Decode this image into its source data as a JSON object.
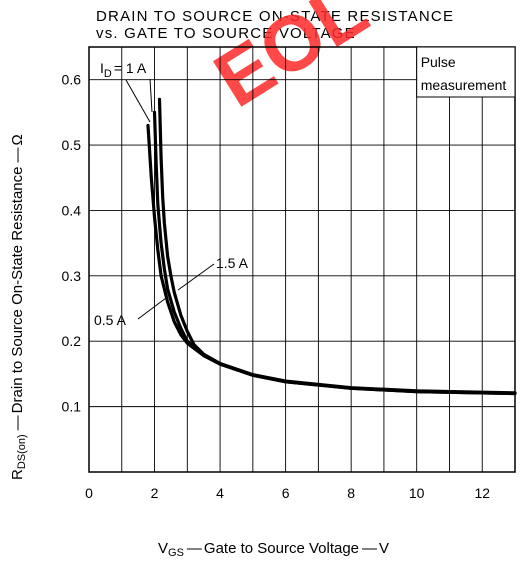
{
  "chart_data": {
    "type": "line",
    "title_line1": "DRAIN TO SOURCE ON-STATE RESISTANCE",
    "title_line2": "vs. GATE TO SOURCE VOLTAGE",
    "xlabel": "Gate to Source Voltage",
    "xlabel_symbol": "V",
    "xlabel_sub": "GS",
    "xlabel_unit": "V",
    "ylabel": "Drain to Source On-State Resistance",
    "ylabel_symbol": "R",
    "ylabel_sub": "DS(on)",
    "ylabel_unit": "Ω",
    "xlim": [
      0,
      13
    ],
    "ylim": [
      0,
      0.65
    ],
    "x_ticks": [
      0,
      2,
      4,
      6,
      8,
      10,
      12
    ],
    "y_ticks": [
      0.1,
      0.2,
      0.3,
      0.4,
      0.5,
      0.6
    ],
    "grid": true,
    "note_line1": "Pulse",
    "note_line2": "measurement",
    "series": [
      {
        "name": "0.5 A",
        "x": [
          1.8,
          1.9,
          2.0,
          2.1,
          2.2,
          2.4,
          2.6,
          2.8,
          3.0,
          3.5,
          4.0,
          5.0,
          6.0,
          8.0,
          10.0,
          12.0,
          13.0
        ],
        "y": [
          0.53,
          0.45,
          0.39,
          0.34,
          0.3,
          0.26,
          0.23,
          0.21,
          0.197,
          0.178,
          0.165,
          0.148,
          0.138,
          0.128,
          0.123,
          0.121,
          0.12
        ]
      },
      {
        "name": "1 A",
        "x": [
          2.0,
          2.05,
          2.1,
          2.2,
          2.3,
          2.4,
          2.6,
          2.8,
          3.0,
          3.5,
          4.0,
          5.0,
          6.0,
          8.0,
          10.0,
          12.0,
          13.0
        ],
        "y": [
          0.55,
          0.47,
          0.41,
          0.35,
          0.31,
          0.28,
          0.245,
          0.22,
          0.2,
          0.178,
          0.165,
          0.148,
          0.138,
          0.128,
          0.123,
          0.121,
          0.12
        ]
      },
      {
        "name": "1.5 A",
        "x": [
          2.15,
          2.2,
          2.25,
          2.3,
          2.4,
          2.5,
          2.6,
          2.8,
          3.0,
          3.2,
          3.5,
          4.0,
          5.0,
          6.0,
          8.0,
          10.0,
          12.0,
          13.0
        ],
        "y": [
          0.57,
          0.48,
          0.42,
          0.38,
          0.33,
          0.3,
          0.275,
          0.24,
          0.215,
          0.195,
          0.18,
          0.166,
          0.149,
          0.139,
          0.129,
          0.124,
          0.122,
          0.121
        ]
      }
    ],
    "annotations": {
      "id_label_prefix": "I",
      "id_label_sub": "D",
      "id_label_value": "= 1 A",
      "label_1_5A": "1.5 A",
      "label_0_5A": "0.5 A"
    },
    "watermark": "EOL"
  }
}
